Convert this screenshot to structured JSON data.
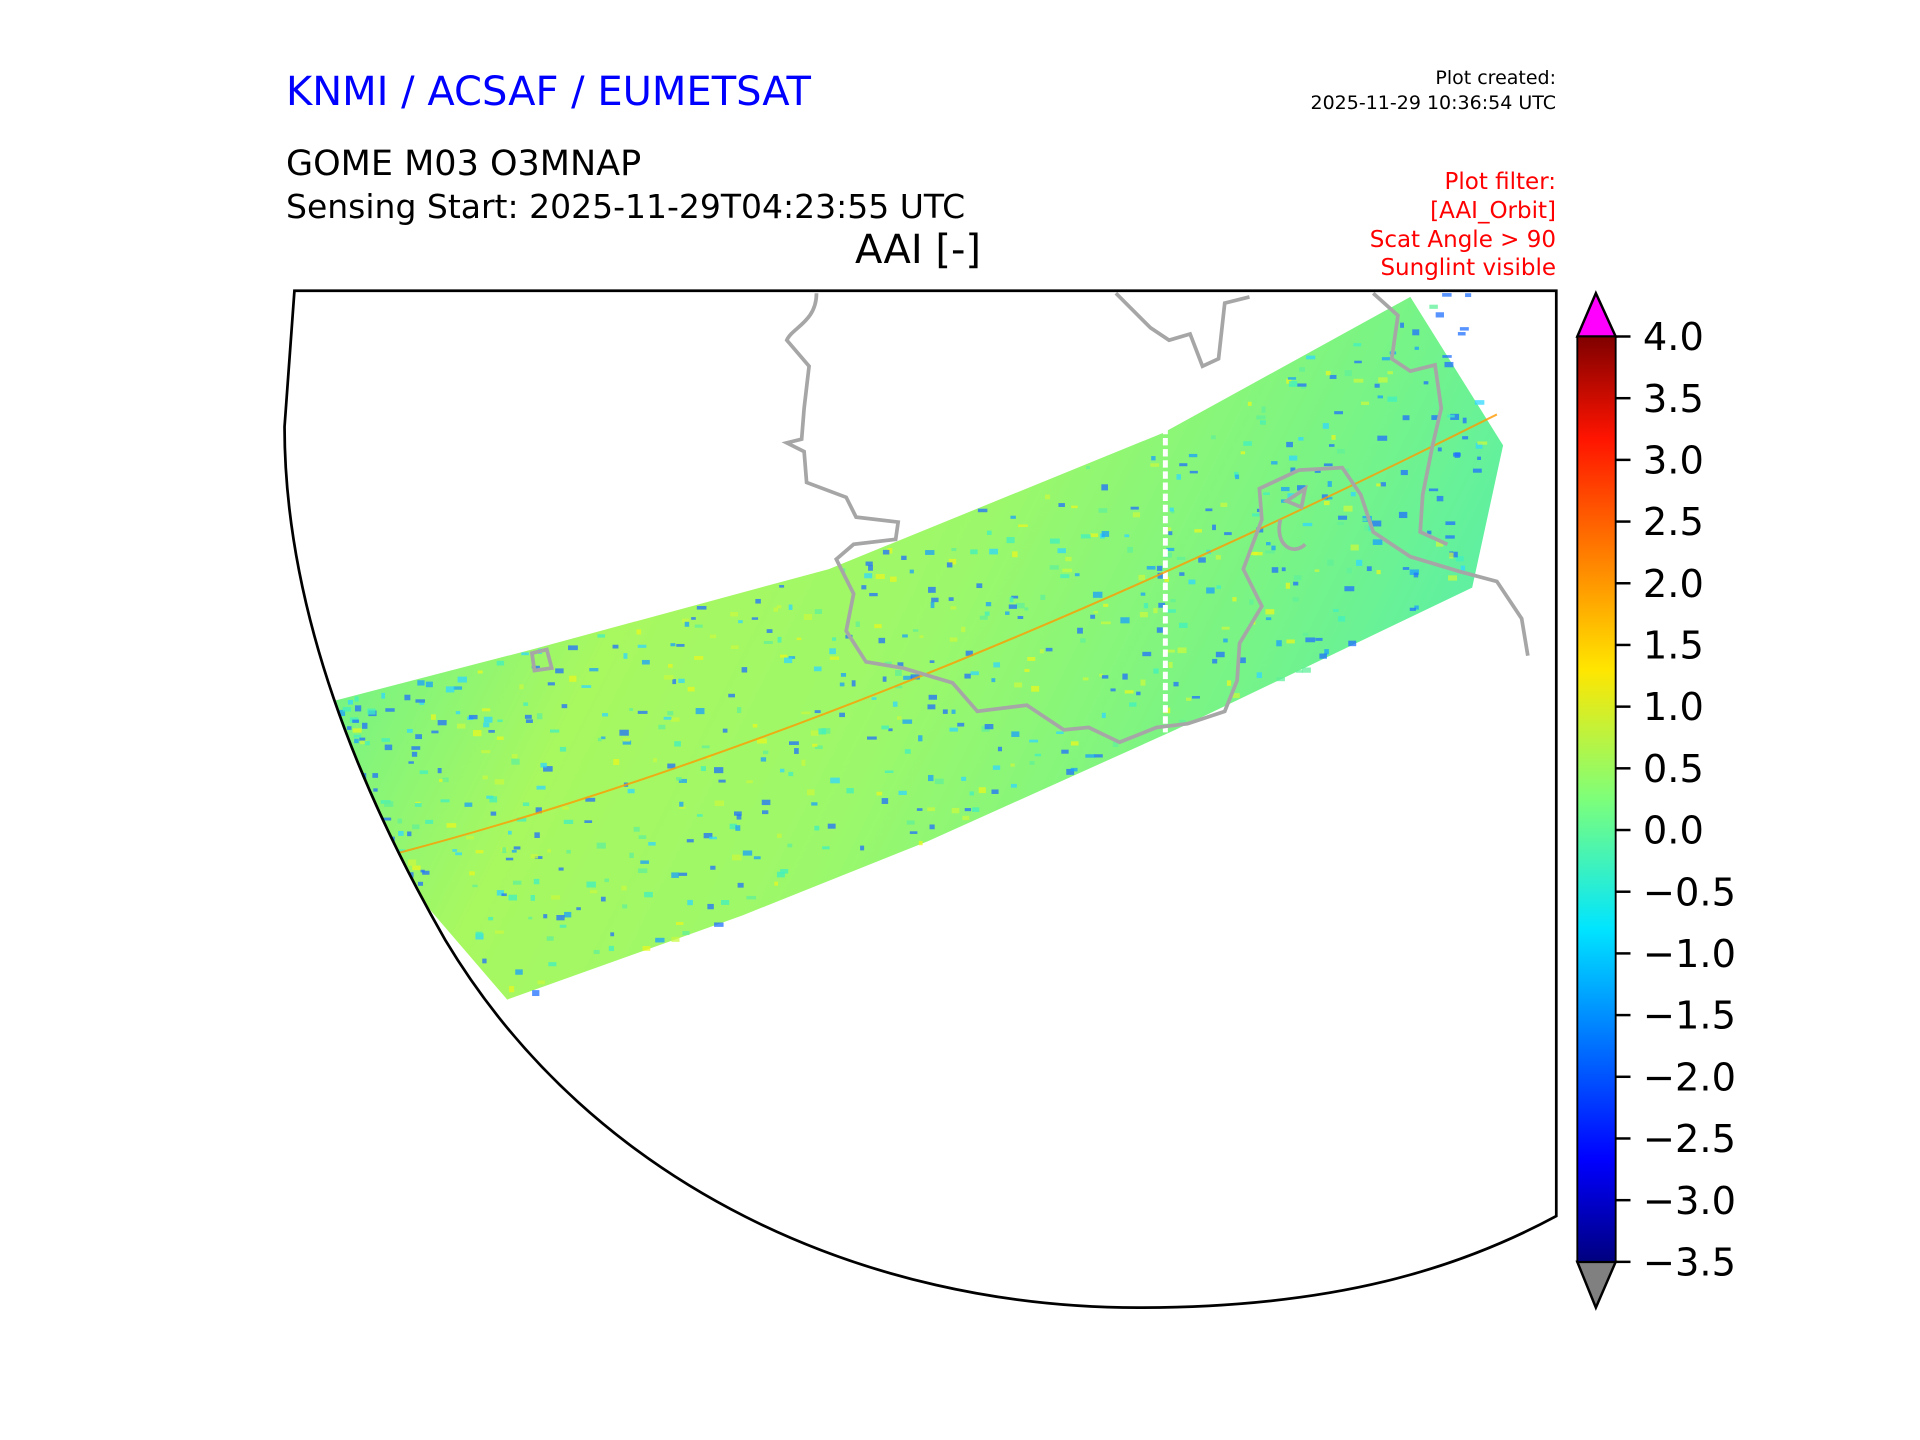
{
  "header": {
    "organisation": "KNMI / ACSAF / EUMETSAT",
    "plot_created_label": "Plot created:",
    "plot_created_time": "2025-11-29 10:36:54 UTC",
    "product": "GOME M03 O3MNAP",
    "sensing_start": "Sensing Start: 2025-11-29T04:23:55 UTC",
    "variable": "AAI [-]",
    "filter_lines": [
      "Plot filter:",
      "[AAI_Orbit]",
      "Scat Angle > 90",
      "Sunglint visible"
    ]
  },
  "colors": {
    "organisation": "#0000ff",
    "filter": "#ff0000",
    "coastline": "#a6a6a6",
    "over": "#ff00ff",
    "under": "#808080"
  },
  "chart_data": {
    "type": "heatmap",
    "title": "AAI [-]",
    "colormap": "jet",
    "colorbar": {
      "min": -3.5,
      "max": 4.0,
      "extend": "both",
      "ticks": [
        4.0,
        3.5,
        3.0,
        2.5,
        2.0,
        1.5,
        1.0,
        0.5,
        0.0,
        -0.5,
        -1.0,
        -1.5,
        -2.0,
        -2.5,
        -3.0,
        -3.5
      ],
      "tick_labels": [
        "4.0",
        "3.5",
        "3.0",
        "2.5",
        "2.0",
        "1.5",
        "1.0",
        "0.5",
        "0.0",
        "−0.5",
        "−1.0",
        "−1.5",
        "−2.0",
        "−2.5",
        "−3.0",
        "−3.5"
      ]
    },
    "typical_value_range": [
      -0.5,
      1.0
    ]
  }
}
